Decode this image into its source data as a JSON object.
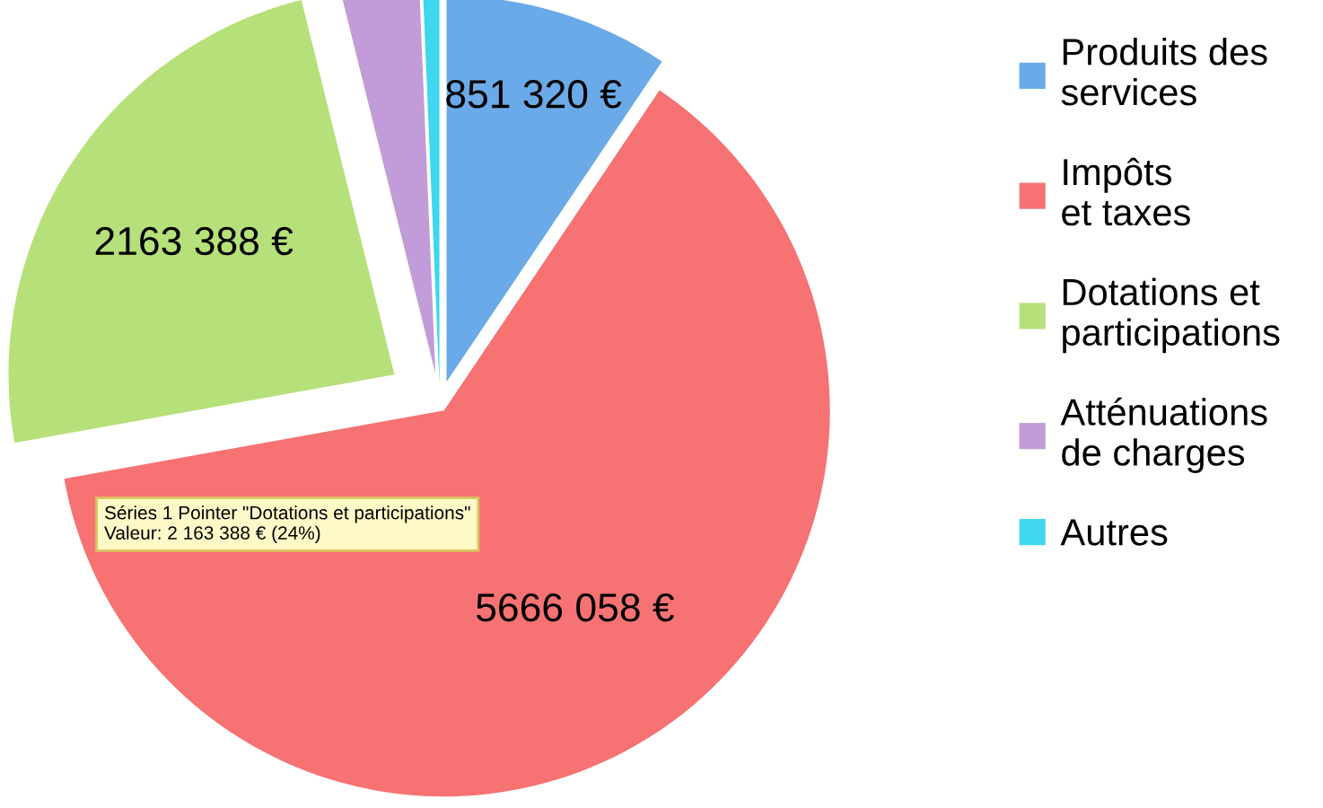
{
  "chart_data": {
    "type": "pie",
    "categories": [
      "Produits des services",
      "Impôts et taxes",
      "Dotations et participations",
      "Atténuations de charges",
      "Autres"
    ],
    "values": [
      851320,
      5666058,
      2163388,
      290000,
      60000
    ],
    "colors": [
      "#6aaae8",
      "#f77272",
      "#b6e07a",
      "#c29cd9",
      "#3fd6ee"
    ],
    "value_labels": [
      "851 320 €",
      "5666 058 €",
      "2163 388 €",
      null,
      null
    ],
    "legend": "right",
    "annotations": [
      "Séries 1 Pointer \"Dotations et participations\"\nValeur: 2 163 388 € (24%)"
    ]
  }
}
